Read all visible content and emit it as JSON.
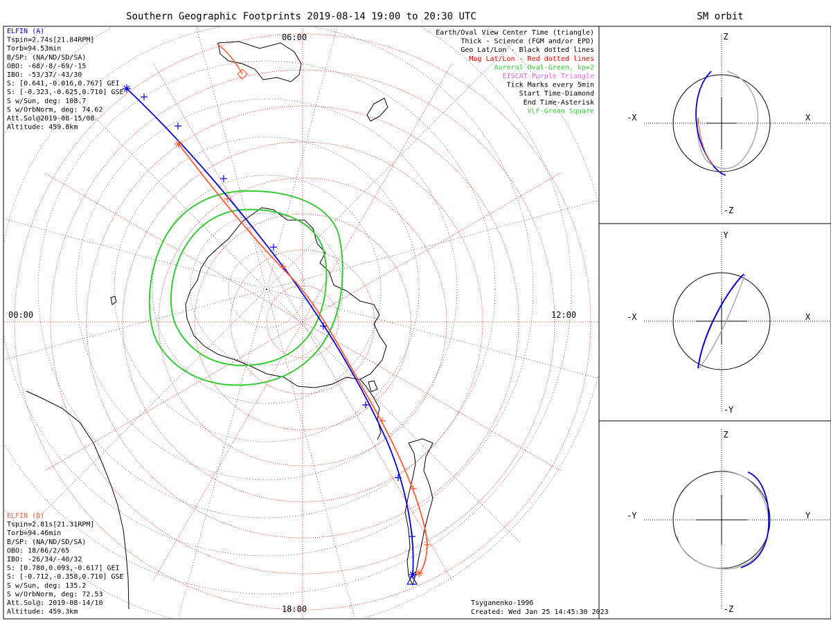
{
  "title": "Southern Geographic Footprints 2019-08-14 19:00 to 20:30 UTC",
  "sm_title": "SM orbit",
  "mlt_labels": {
    "top": "06:00",
    "bottom": "18:00",
    "left": "00:00",
    "right": "12:00"
  },
  "legend": [
    {
      "text": "Earth/Oval View Center Time (triangle)",
      "color": "#000000"
    },
    {
      "text": "Thick - Science (FGM and/or EPD)",
      "color": "#000000"
    },
    {
      "text": "Geo Lat/Lon - Black dotted lines",
      "color": "#000000"
    },
    {
      "text": "Mag Lat/Lon - Red dotted lines",
      "color": "#e00000"
    },
    {
      "text": "Auroral Oval-Green, kp=2",
      "color": "#33cc33"
    },
    {
      "text": "EISCAT-Purple Triangle",
      "color": "#dd66dd"
    },
    {
      "text": "Tick Marks every 5min",
      "color": "#000000"
    },
    {
      "text": "Start Time-Diamond",
      "color": "#000000"
    },
    {
      "text": "End Time-Asterisk",
      "color": "#000000"
    },
    {
      "text": "VLF-Green Square",
      "color": "#33cc33"
    }
  ],
  "elfin_a": {
    "name": "ELFIN (A)",
    "color": "#0000dd",
    "lines": [
      "Tspin=2.74s[21.84RPM]",
      "Torb=94.53min",
      "B/SP: (NA/ND/SD/SA)",
      "OBO: -68/-8/-69/-15",
      "IBO: -53/37/-43/30",
      "S: [0.641,-0.016,0.767] GEI",
      "S: [-0.323,-0.625,0.710] GSE",
      "S w/Sun, deg: 108.7",
      "S w/OrbNorm, deg: 74.62",
      "Att.Sol@2019-08-15/08",
      "Altitude: 459.8km"
    ]
  },
  "elfin_b": {
    "name": "ELFIN (B)",
    "color": "#ff5a33",
    "lines": [
      "Tspin=2.81s[21.31RPM]",
      "Torb=94.46min",
      "B/SP: (NA/ND/SD/SA)",
      "OBO: 18/66/2/65",
      "IBO: -26/34/-40/32",
      "S: [0.780,0.093,-0.617] GEI",
      "S: [-0.712,-0.358,0.710] GSE",
      "S w/Sun, deg: 135.2",
      "S w/OrbNorm, deg: 72.53",
      "Att.Sol@: 2019-08-14/10",
      "Altitude: 459.3km"
    ]
  },
  "footer": {
    "model": "Tsyganenko-1996",
    "created": "Created: Wed Jan 25 14:45:30 2023"
  },
  "panels": [
    {
      "top": "Z",
      "bottom": "-Z",
      "left": "-X",
      "right": "X"
    },
    {
      "top": "Y",
      "bottom": "-Y",
      "left": "-X",
      "right": "X"
    },
    {
      "top": "Z",
      "bottom": "-Z",
      "left": "-Y",
      "right": "Y"
    }
  ],
  "colors": {
    "blue": "#0000dd",
    "orange": "#ff5a33",
    "green": "#33cc33",
    "grid_red": "#e00000",
    "gray": "#aaaaaa"
  }
}
